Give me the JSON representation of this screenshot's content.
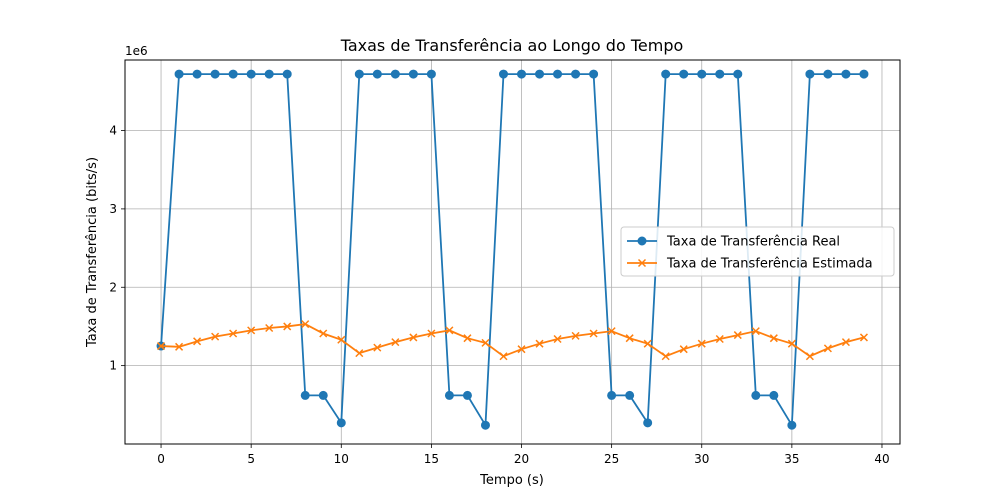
{
  "chart_data": {
    "type": "line",
    "title": "Taxas de Transferência ao Longo do Tempo",
    "xlabel": "Tempo (s)",
    "ylabel": "Taxa de Transferência (bits/s)",
    "y_offset_label": "1e6",
    "xlim": [
      -2,
      41
    ],
    "ylim": [
      0,
      4900000
    ],
    "xticks": [
      0,
      5,
      10,
      15,
      20,
      25,
      30,
      35,
      40
    ],
    "yticks": [
      1000000,
      2000000,
      3000000,
      4000000
    ],
    "ytick_labels": [
      "1",
      "2",
      "3",
      "4"
    ],
    "grid": true,
    "legend_position": "center-right",
    "x": [
      0,
      1,
      2,
      3,
      4,
      5,
      6,
      7,
      8,
      9,
      10,
      11,
      12,
      13,
      14,
      15,
      16,
      17,
      18,
      19,
      20,
      21,
      22,
      23,
      24,
      25,
      26,
      27,
      28,
      29,
      30,
      31,
      32,
      33,
      34,
      35,
      36,
      37,
      38,
      39
    ],
    "series": [
      {
        "name": "Taxa de Transferência Real",
        "color": "#1f77b4",
        "marker": "circle",
        "values": [
          1250000,
          4720000,
          4720000,
          4720000,
          4720000,
          4720000,
          4720000,
          4720000,
          620000,
          620000,
          270000,
          4720000,
          4720000,
          4720000,
          4720000,
          4720000,
          620000,
          620000,
          240000,
          4720000,
          4720000,
          4720000,
          4720000,
          4720000,
          4720000,
          620000,
          620000,
          270000,
          4720000,
          4720000,
          4720000,
          4720000,
          4720000,
          620000,
          620000,
          240000,
          4720000,
          4720000,
          4720000,
          4720000
        ]
      },
      {
        "name": "Taxa de Transferência Estimada",
        "color": "#ff7f0e",
        "marker": "x",
        "values": [
          1250000,
          1240000,
          1310000,
          1370000,
          1410000,
          1450000,
          1480000,
          1500000,
          1530000,
          1410000,
          1330000,
          1160000,
          1230000,
          1300000,
          1360000,
          1410000,
          1450000,
          1350000,
          1290000,
          1120000,
          1210000,
          1280000,
          1340000,
          1380000,
          1410000,
          1440000,
          1350000,
          1280000,
          1120000,
          1210000,
          1280000,
          1340000,
          1390000,
          1440000,
          1350000,
          1280000,
          1120000,
          1220000,
          1300000,
          1360000
        ]
      }
    ]
  }
}
